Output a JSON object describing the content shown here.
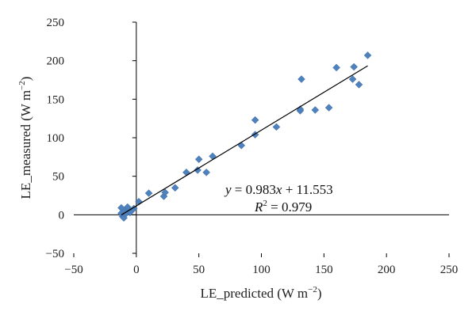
{
  "chart_data": {
    "type": "scatter",
    "title": "",
    "xlabel": {
      "text": "LE_predicted (W m",
      "sup": "−2",
      "close": ")"
    },
    "ylabel": {
      "text": "LE_measured (W m",
      "sup": "−2",
      "close": ")"
    },
    "xlim": [
      -50,
      250
    ],
    "ylim": [
      -50,
      250
    ],
    "xticks": [
      -50,
      0,
      50,
      100,
      150,
      200,
      250
    ],
    "yticks": [
      -50,
      0,
      50,
      100,
      150,
      200,
      250
    ],
    "grid": false,
    "marker": "diamond",
    "color": "#4f81bd",
    "points": [
      [
        -12,
        9
      ],
      [
        -11,
        -2
      ],
      [
        -10,
        -4
      ],
      [
        -12,
        2
      ],
      [
        -9,
        4
      ],
      [
        -8,
        2
      ],
      [
        -7,
        8
      ],
      [
        -6,
        6
      ],
      [
        -5,
        3
      ],
      [
        -7,
        10
      ],
      [
        -2,
        8
      ],
      [
        2,
        17
      ],
      [
        10,
        28
      ],
      [
        22,
        24
      ],
      [
        23,
        29
      ],
      [
        31,
        35
      ],
      [
        40,
        55
      ],
      [
        49,
        58
      ],
      [
        50,
        72
      ],
      [
        56,
        55
      ],
      [
        61,
        76
      ],
      [
        84,
        90
      ],
      [
        95,
        104
      ],
      [
        95,
        123
      ],
      [
        112,
        114
      ],
      [
        131,
        135
      ],
      [
        131,
        137
      ],
      [
        132,
        176
      ],
      [
        143,
        136
      ],
      [
        154,
        139
      ],
      [
        160,
        191
      ],
      [
        173,
        176
      ],
      [
        174,
        192
      ],
      [
        178,
        169
      ],
      [
        185,
        207
      ]
    ],
    "trendline": {
      "slope": 0.983,
      "intercept": 11.553,
      "x_range": [
        -12,
        185
      ]
    },
    "annotations": {
      "equation": {
        "y": "y",
        "eq": " = 0.983",
        "x": "x",
        "rest": " + 11.553"
      },
      "r2": {
        "R": "R",
        "sup": "2",
        "rest": " = 0.979"
      }
    }
  }
}
